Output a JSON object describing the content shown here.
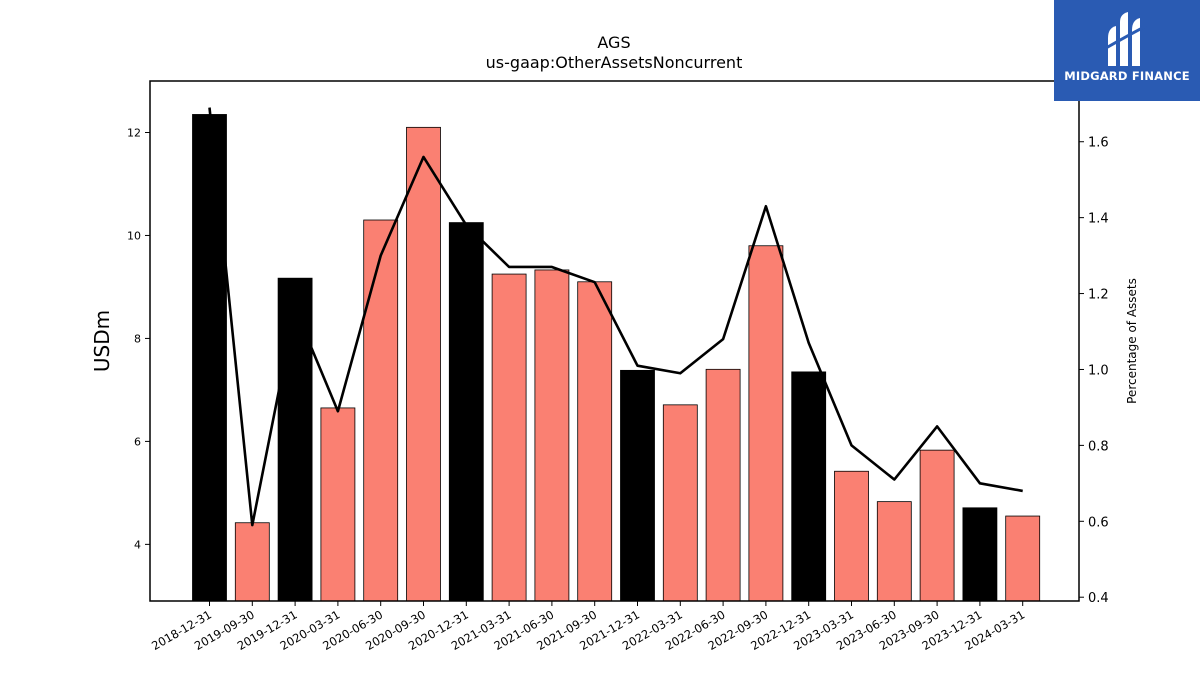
{
  "chart_data": {
    "type": "bar+line",
    "title": "AGS",
    "subtitle": "us-gaap:OtherAssetsNoncurrent",
    "ylabel": "USDm",
    "y2label": "Percentage of Assets",
    "ylim": [
      2.9,
      13.0
    ],
    "y2lim": [
      0.39,
      1.76
    ],
    "yticks": [
      4,
      6,
      8,
      10,
      12
    ],
    "y2ticks": [
      0.4,
      0.6,
      0.8,
      1.0,
      1.2,
      1.4,
      1.6
    ],
    "categories": [
      "2018-12-31",
      "2019-09-30",
      "2019-12-31",
      "2020-03-31",
      "2020-06-30",
      "2020-09-30",
      "2020-12-31",
      "2021-03-31",
      "2021-06-30",
      "2021-09-30",
      "2021-12-31",
      "2022-03-31",
      "2022-06-30",
      "2022-09-30",
      "2022-12-31",
      "2023-03-31",
      "2023-06-30",
      "2023-09-30",
      "2023-12-31",
      "2024-03-31"
    ],
    "values": [
      12.35,
      4.42,
      9.17,
      6.65,
      10.3,
      12.1,
      10.25,
      9.25,
      9.33,
      9.1,
      7.38,
      6.71,
      7.4,
      9.8,
      7.35,
      5.42,
      4.83,
      5.83,
      4.71,
      4.55
    ],
    "bar_colors": [
      "#000000",
      "#fa8072",
      "#000000",
      "#fa8072",
      "#fa8072",
      "#fa8072",
      "#000000",
      "#fa8072",
      "#fa8072",
      "#fa8072",
      "#000000",
      "#fa8072",
      "#fa8072",
      "#fa8072",
      "#000000",
      "#fa8072",
      "#fa8072",
      "#fa8072",
      "#000000",
      "#fa8072"
    ],
    "line_values": [
      1.69,
      0.59,
      1.16,
      0.89,
      1.3,
      1.56,
      1.38,
      1.27,
      1.27,
      1.23,
      1.01,
      0.99,
      1.08,
      1.43,
      1.07,
      0.8,
      0.71,
      0.85,
      0.7,
      0.68
    ],
    "line_color": "#000000"
  },
  "logo": {
    "text": "MIDGARD FINANCE",
    "color": "#2a5bb3"
  }
}
